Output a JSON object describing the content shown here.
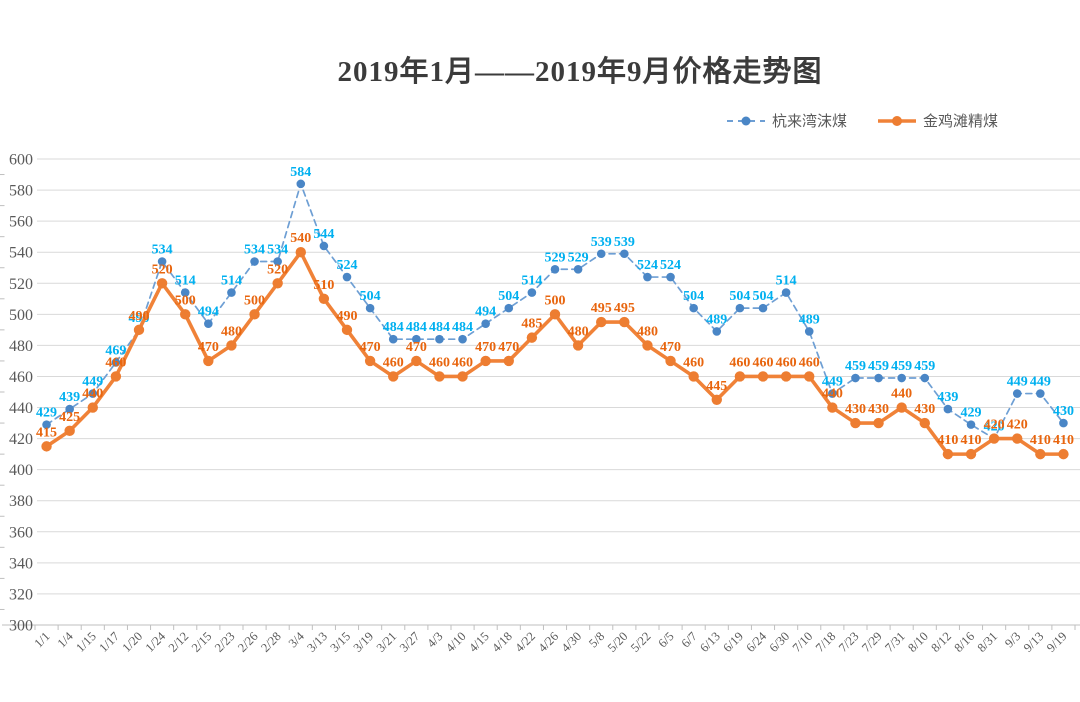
{
  "title": "2019年1月——2019年9月价格走势图",
  "colors": {
    "gridline": "#d9d9d9",
    "axis_line": "#bfbfbf",
    "axis_text": "#595959",
    "title_text": "#3b3b3b"
  },
  "chart_data": {
    "type": "line",
    "title": "2019年1月——2019年9月价格走势图",
    "xlabel": "",
    "ylabel": "",
    "ylim": [
      300,
      600
    ],
    "ytick_step": 20,
    "y_ticks": [
      600,
      580,
      560,
      540,
      520,
      500,
      480,
      460,
      440,
      420,
      400,
      380,
      360,
      340,
      320,
      300
    ],
    "grid": true,
    "legend_position": "top-right",
    "categories": [
      "1/1",
      "1/4",
      "1/15",
      "1/17",
      "1/20",
      "1/24",
      "2/12",
      "2/15",
      "2/23",
      "2/26",
      "2/28",
      "3/4",
      "3/13",
      "3/15",
      "3/19",
      "3/21",
      "3/27",
      "4/3",
      "4/10",
      "4/15",
      "4/18",
      "4/22",
      "4/26",
      "4/30",
      "5/8",
      "5/20",
      "5/22",
      "6/5",
      "6/7",
      "6/13",
      "6/19",
      "6/24",
      "6/30",
      "7/10",
      "7/18",
      "7/23",
      "7/29",
      "7/31",
      "8/10",
      "8/12",
      "8/16",
      "8/31",
      "9/3",
      "9/13",
      "9/19"
    ],
    "series": [
      {
        "name": "杭来湾沫煤",
        "style": "dashed",
        "line_color": "#6e9fd4",
        "dot_color": "#4a86c6",
        "label_color": "#00b0f0",
        "values": [
          429,
          439,
          449,
          469,
          490,
          534,
          514,
          494,
          514,
          534,
          534,
          584,
          544,
          524,
          504,
          484,
          484,
          484,
          484,
          494,
          504,
          514,
          529,
          529,
          539,
          539,
          524,
          524,
          504,
          489,
          504,
          504,
          514,
          489,
          449,
          459,
          459,
          459,
          459,
          439,
          429,
          420,
          449,
          449,
          430
        ]
      },
      {
        "name": "金鸡滩精煤",
        "style": "solid",
        "line_color": "#f08238",
        "dot_color": "#ed7d31",
        "label_color": "#e8650e",
        "values": [
          415,
          425,
          440,
          460,
          490,
          520,
          500,
          470,
          480,
          500,
          520,
          540,
          510,
          490,
          470,
          460,
          470,
          460,
          460,
          470,
          470,
          485,
          500,
          480,
          495,
          495,
          480,
          470,
          460,
          445,
          460,
          460,
          460,
          460,
          440,
          430,
          430,
          440,
          430,
          410,
          410,
          420,
          420,
          410,
          410
        ]
      }
    ]
  }
}
